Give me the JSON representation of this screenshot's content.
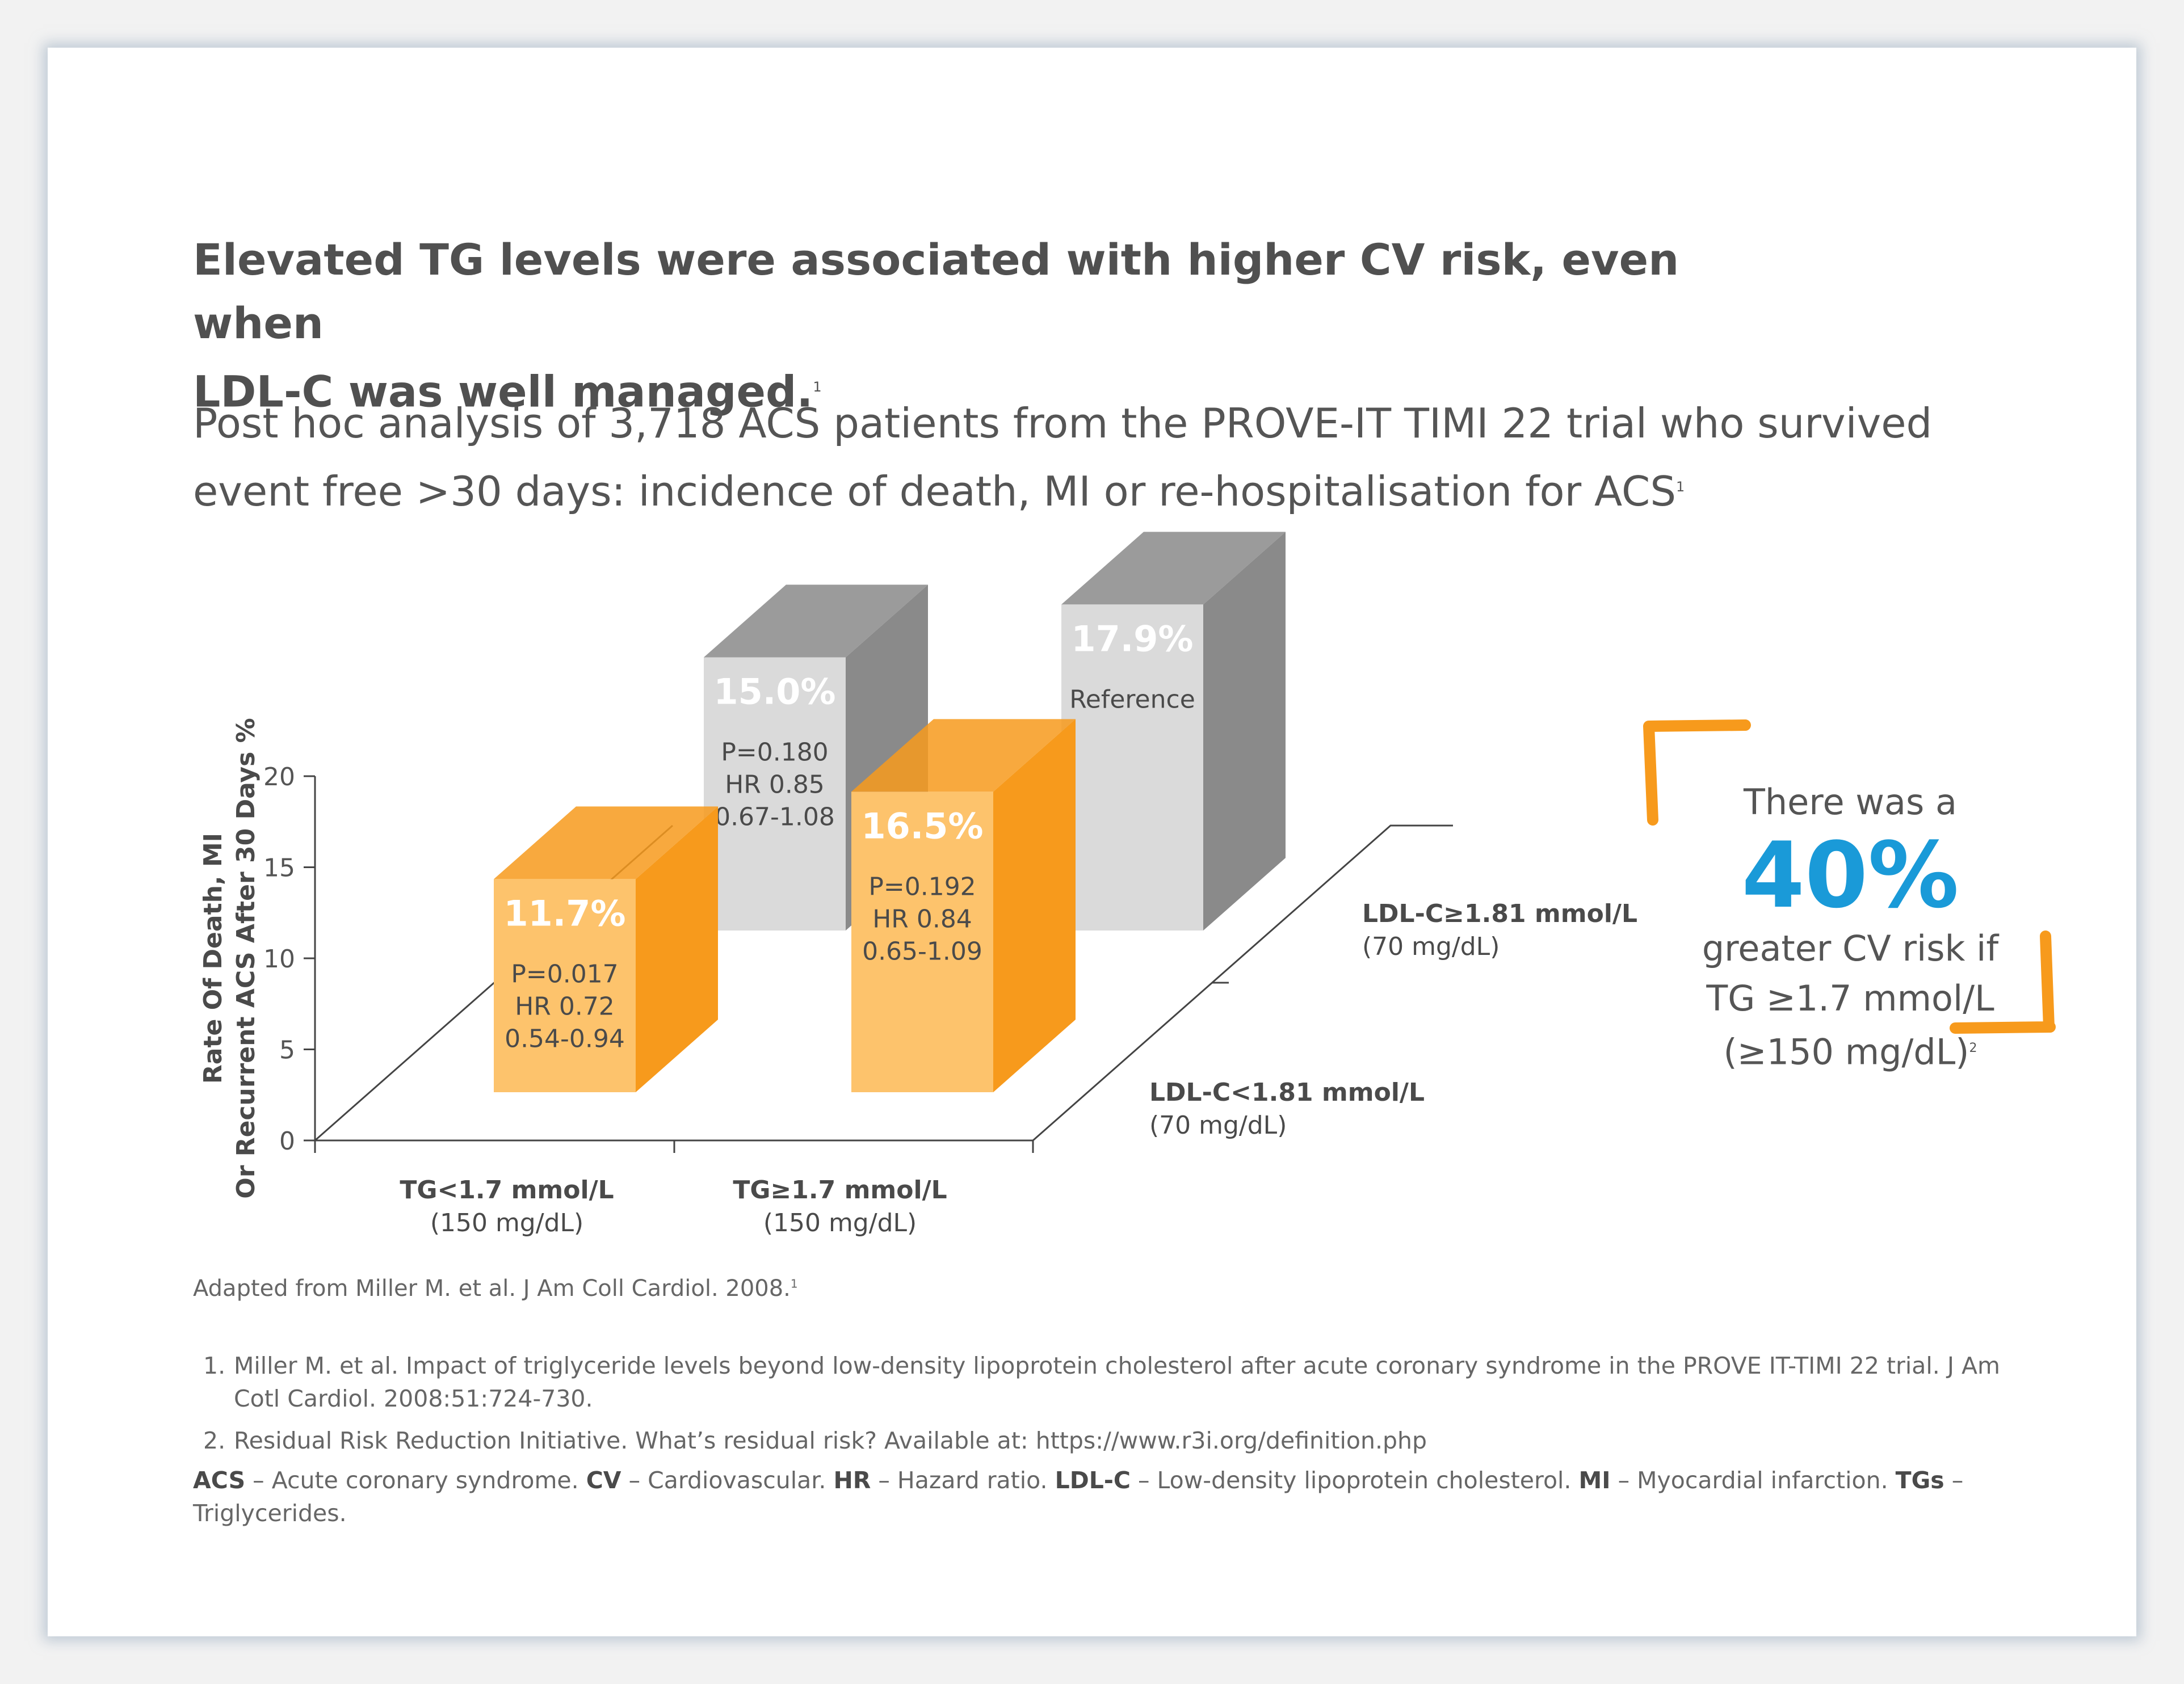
{
  "headline": {
    "line1": "Elevated TG levels were associated with higher CV risk, even when",
    "line2": "LDL-C was well managed.",
    "sup": "1"
  },
  "subtitle": {
    "line1": "Post hoc analysis of 3,718 ACS patients from the PROVE-IT TIMI 22 trial who survived",
    "line2": "event free >30 days: incidence of death, MI or re-hospitalisation for ACS",
    "sup": "1"
  },
  "chart_data": {
    "type": "bar",
    "ylabel_line1": "Rate Of Death, MI",
    "ylabel_line2": "Or Recurrent ACS After 30 Days %",
    "ylim": [
      0,
      20
    ],
    "yticks": [
      0,
      5,
      10,
      15,
      20
    ],
    "categories": [
      {
        "label": "TG<1.7 mmol/L",
        "sublabel": "(150 mg/dL)"
      },
      {
        "label": "TG≥1.7 mmol/L",
        "sublabel": "(150 mg/dL)"
      }
    ],
    "depth_labels": [
      {
        "label": "LDL-C<1.81 mmol/L",
        "sublabel": "(70 mg/dL)"
      },
      {
        "label": "LDL-C≥1.81 mmol/L",
        "sublabel": "(70 mg/dL)"
      }
    ],
    "series": [
      {
        "name": "LDL-C<1.81 mmol/L",
        "color": "#fdc36c",
        "side_color": "#f79a1c",
        "bars": [
          {
            "category": 0,
            "value": 11.7,
            "label": "11.7%",
            "p": "P=0.017",
            "hr": "HR 0.72",
            "ci": "0.54-0.94"
          },
          {
            "category": 1,
            "value": 16.5,
            "label": "16.5%",
            "p": "P=0.192",
            "hr": "HR 0.84",
            "ci": "0.65-1.09"
          }
        ]
      },
      {
        "name": "LDL-C≥1.81 mmol/L",
        "color": "#dadada",
        "side_color": "#8a8a8a",
        "bars": [
          {
            "category": 0,
            "value": 15.0,
            "label": "15.0%",
            "p": "P=0.180",
            "hr": "HR 0.85",
            "ci": "0.67-1.08"
          },
          {
            "category": 1,
            "value": 17.9,
            "label": "17.9%",
            "p": "Reference",
            "hr": "",
            "ci": ""
          }
        ]
      }
    ]
  },
  "callout": {
    "line1": "There was a",
    "big": "40%",
    "line2": "greater CV risk if",
    "line3": "TG ≥1.7 mmol/L",
    "line4": "(≥150 mg/dL)",
    "sup": "2",
    "accent_color": "#1a9ad8",
    "bracket_color": "#f79a1c"
  },
  "source": {
    "text": "Adapted from Miller M. et al. J Am Coll Cardiol. 2008.",
    "sup": "1"
  },
  "references": [
    {
      "num": "1.",
      "text": "Miller M. et al. Impact of triglyceride levels beyond low-density lipoprotein cholesterol after acute coronary syndrome in the PROVE IT-TIMI 22 trial. J Am Cotl Cardiol. 2008:51:724-730."
    },
    {
      "num": "2.",
      "text": "Residual Risk Reduction Initiative. What’s residual risk? Available at: https://www.r3i.org/definition.php"
    }
  ],
  "abbreviations": [
    {
      "term": "ACS",
      "def": " – Acute coronary syndrome. "
    },
    {
      "term": "CV",
      "def": " – Cardiovascular. "
    },
    {
      "term": "HR",
      "def": " – Hazard ratio. "
    },
    {
      "term": "LDL-C",
      "def": " – Low-density lipoprotein cholesterol. "
    },
    {
      "term": "MI",
      "def": " – Myocardial infarction. "
    },
    {
      "term": "TGs",
      "def": " – Triglycerides."
    }
  ]
}
